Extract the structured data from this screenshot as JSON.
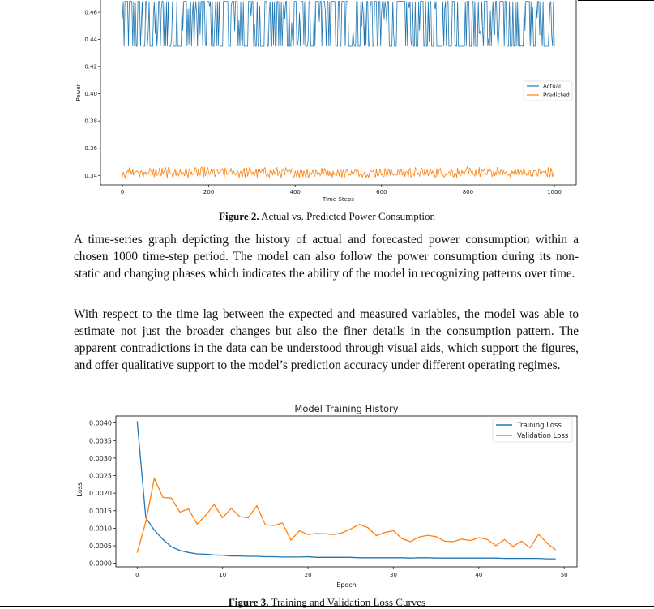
{
  "figure2": {
    "caption_label": "Figure 2.",
    "caption_text": "Actual vs. Predicted Power Consumption",
    "chart_data": {
      "type": "line",
      "title": "",
      "xlabel": "Time Steps",
      "ylabel": "Power",
      "x_range": [
        0,
        1000
      ],
      "ylim": [
        0.333,
        0.469
      ],
      "x_ticks": [
        "0",
        "200",
        "400",
        "600",
        "800",
        "1000"
      ],
      "y_ticks": [
        "0.34",
        "0.36",
        "0.38",
        "0.40",
        "0.42",
        "0.44",
        "0.46"
      ],
      "legend_position": "right",
      "grid": false,
      "series": [
        {
          "name": "Actual",
          "color": "#1f77b4",
          "mean": 0.451,
          "min": 0.435,
          "max": 0.468
        },
        {
          "name": "Predicted",
          "color": "#ff7f0e",
          "mean": 0.342,
          "min": 0.338,
          "max": 0.347
        }
      ]
    }
  },
  "paragraphs": [
    "A time-series graph depicting the history of actual and forecasted power consumption within a chosen 1000 time-step period. The model can also follow the power consumption during its non-static and changing phases which indicates the ability of the model in recognizing patterns over time.",
    "With respect to the time lag between the expected and measured variables, the model was able to estimate not just the broader changes but also the finer details in the consumption pattern. The apparent contradictions in the data can be understood through visual aids, which support the figures, and offer qualitative support to the model’s prediction accuracy under different operating regimes."
  ],
  "figure3": {
    "caption_label": "Figure 3.",
    "caption_text": "Training and Validation Loss Curves",
    "chart_data": {
      "type": "line",
      "title": "Model Training History",
      "xlabel": "Epoch",
      "ylabel": "Loss",
      "xlim": [
        -2.5,
        51.5
      ],
      "ylim": [
        -0.0001,
        0.0042
      ],
      "x_ticks": [
        "0",
        "10",
        "20",
        "30",
        "40",
        "50"
      ],
      "y_ticks": [
        "0.0000",
        "0.0005",
        "0.0010",
        "0.0015",
        "0.0020",
        "0.0025",
        "0.0030",
        "0.0035",
        "0.0040"
      ],
      "legend_position": "top-right",
      "grid": false,
      "x": [
        0,
        1,
        2,
        3,
        4,
        5,
        6,
        7,
        8,
        9,
        10,
        11,
        12,
        13,
        14,
        15,
        16,
        17,
        18,
        19,
        20,
        21,
        22,
        23,
        24,
        25,
        26,
        27,
        28,
        29,
        30,
        31,
        32,
        33,
        34,
        35,
        36,
        37,
        38,
        39,
        40,
        41,
        42,
        43,
        44,
        45,
        46,
        47,
        48,
        49
      ],
      "series": [
        {
          "name": "Training Loss",
          "color": "#1f77b4",
          "values": [
            0.00405,
            0.0013,
            0.00095,
            0.00068,
            0.00047,
            0.00037,
            0.00031,
            0.00027,
            0.00026,
            0.00024,
            0.00023,
            0.00021,
            0.00021,
            0.0002,
            0.0002,
            0.00019,
            0.00019,
            0.00018,
            0.00018,
            0.00018,
            0.00019,
            0.00017,
            0.00017,
            0.00017,
            0.00017,
            0.00017,
            0.00016,
            0.00016,
            0.00016,
            0.00016,
            0.00016,
            0.00016,
            0.00015,
            0.00016,
            0.00016,
            0.00015,
            0.00015,
            0.00015,
            0.00015,
            0.00015,
            0.00015,
            0.00015,
            0.00015,
            0.00014,
            0.00014,
            0.00014,
            0.00014,
            0.00014,
            0.00013,
            0.00013
          ]
        },
        {
          "name": "Validation Loss",
          "color": "#ff7f0e",
          "values": [
            0.0003,
            0.00118,
            0.00242,
            0.00188,
            0.00186,
            0.00146,
            0.00155,
            0.00112,
            0.00136,
            0.00168,
            0.0013,
            0.00157,
            0.00133,
            0.0013,
            0.00164,
            0.0011,
            0.00108,
            0.00115,
            0.00066,
            0.00093,
            0.00082,
            0.00085,
            0.00084,
            0.00082,
            0.00087,
            0.00098,
            0.00111,
            0.00102,
            0.00079,
            0.00088,
            0.00093,
            0.0007,
            0.00062,
            0.00075,
            0.0008,
            0.00076,
            0.00063,
            0.00062,
            0.00069,
            0.00065,
            0.00073,
            0.00068,
            0.0005,
            0.00068,
            0.00048,
            0.00063,
            0.00044,
            0.00083,
            0.00057,
            0.00038
          ]
        }
      ]
    }
  }
}
